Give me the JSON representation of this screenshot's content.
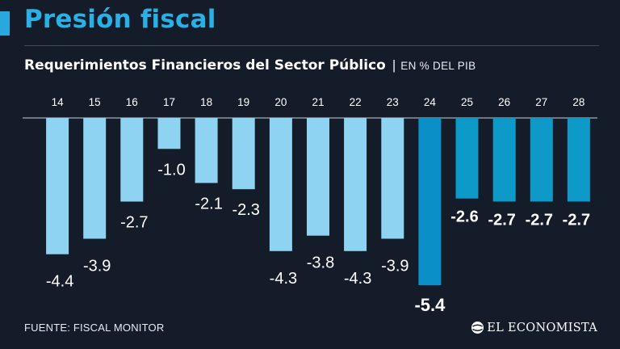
{
  "header": {
    "title": "Presión fiscal",
    "subtitle": "Requerimientos Financieros del Sector Público",
    "separator": "|",
    "unit": "EN % DEL PIB"
  },
  "footer": {
    "source": "FUENTE: FISCAL MONITOR",
    "brand": "EL ECONOMISTA"
  },
  "colors": {
    "background": "#141b29",
    "title": "#29b0e4",
    "historical_bar": "#8fd3f2",
    "current_bar": "#0a90c6",
    "projection_bar": "#0d9ac8",
    "text": "#ffffff"
  },
  "chart_data": {
    "type": "bar",
    "title": "Requerimientos Financieros del Sector Público",
    "ylabel": "EN % DEL PIB",
    "xlabel": "",
    "categories": [
      "14",
      "15",
      "16",
      "17",
      "18",
      "19",
      "20",
      "21",
      "22",
      "23",
      "24",
      "25",
      "26",
      "27",
      "28"
    ],
    "values": [
      -4.4,
      -3.9,
      -2.7,
      -1.0,
      -2.1,
      -2.3,
      -4.3,
      -3.8,
      -4.3,
      -3.9,
      -5.4,
      -2.6,
      -2.7,
      -2.7,
      -2.7
    ],
    "data_labels": [
      "-4.4",
      "-3.9",
      "-2.7",
      "-1.0",
      "-2.1",
      "-2.3",
      "-4.3",
      "-3.8",
      "-4.3",
      "-3.9",
      "-5.4",
      "-2.6",
      "-2.7",
      "-2.7",
      "-2.7"
    ],
    "groups": [
      "historical",
      "historical",
      "historical",
      "historical",
      "historical",
      "historical",
      "historical",
      "historical",
      "historical",
      "historical",
      "current",
      "projection",
      "projection",
      "projection",
      "projection"
    ],
    "ylim": [
      -5.4,
      0
    ],
    "grid": false,
    "axis_position": "top"
  }
}
